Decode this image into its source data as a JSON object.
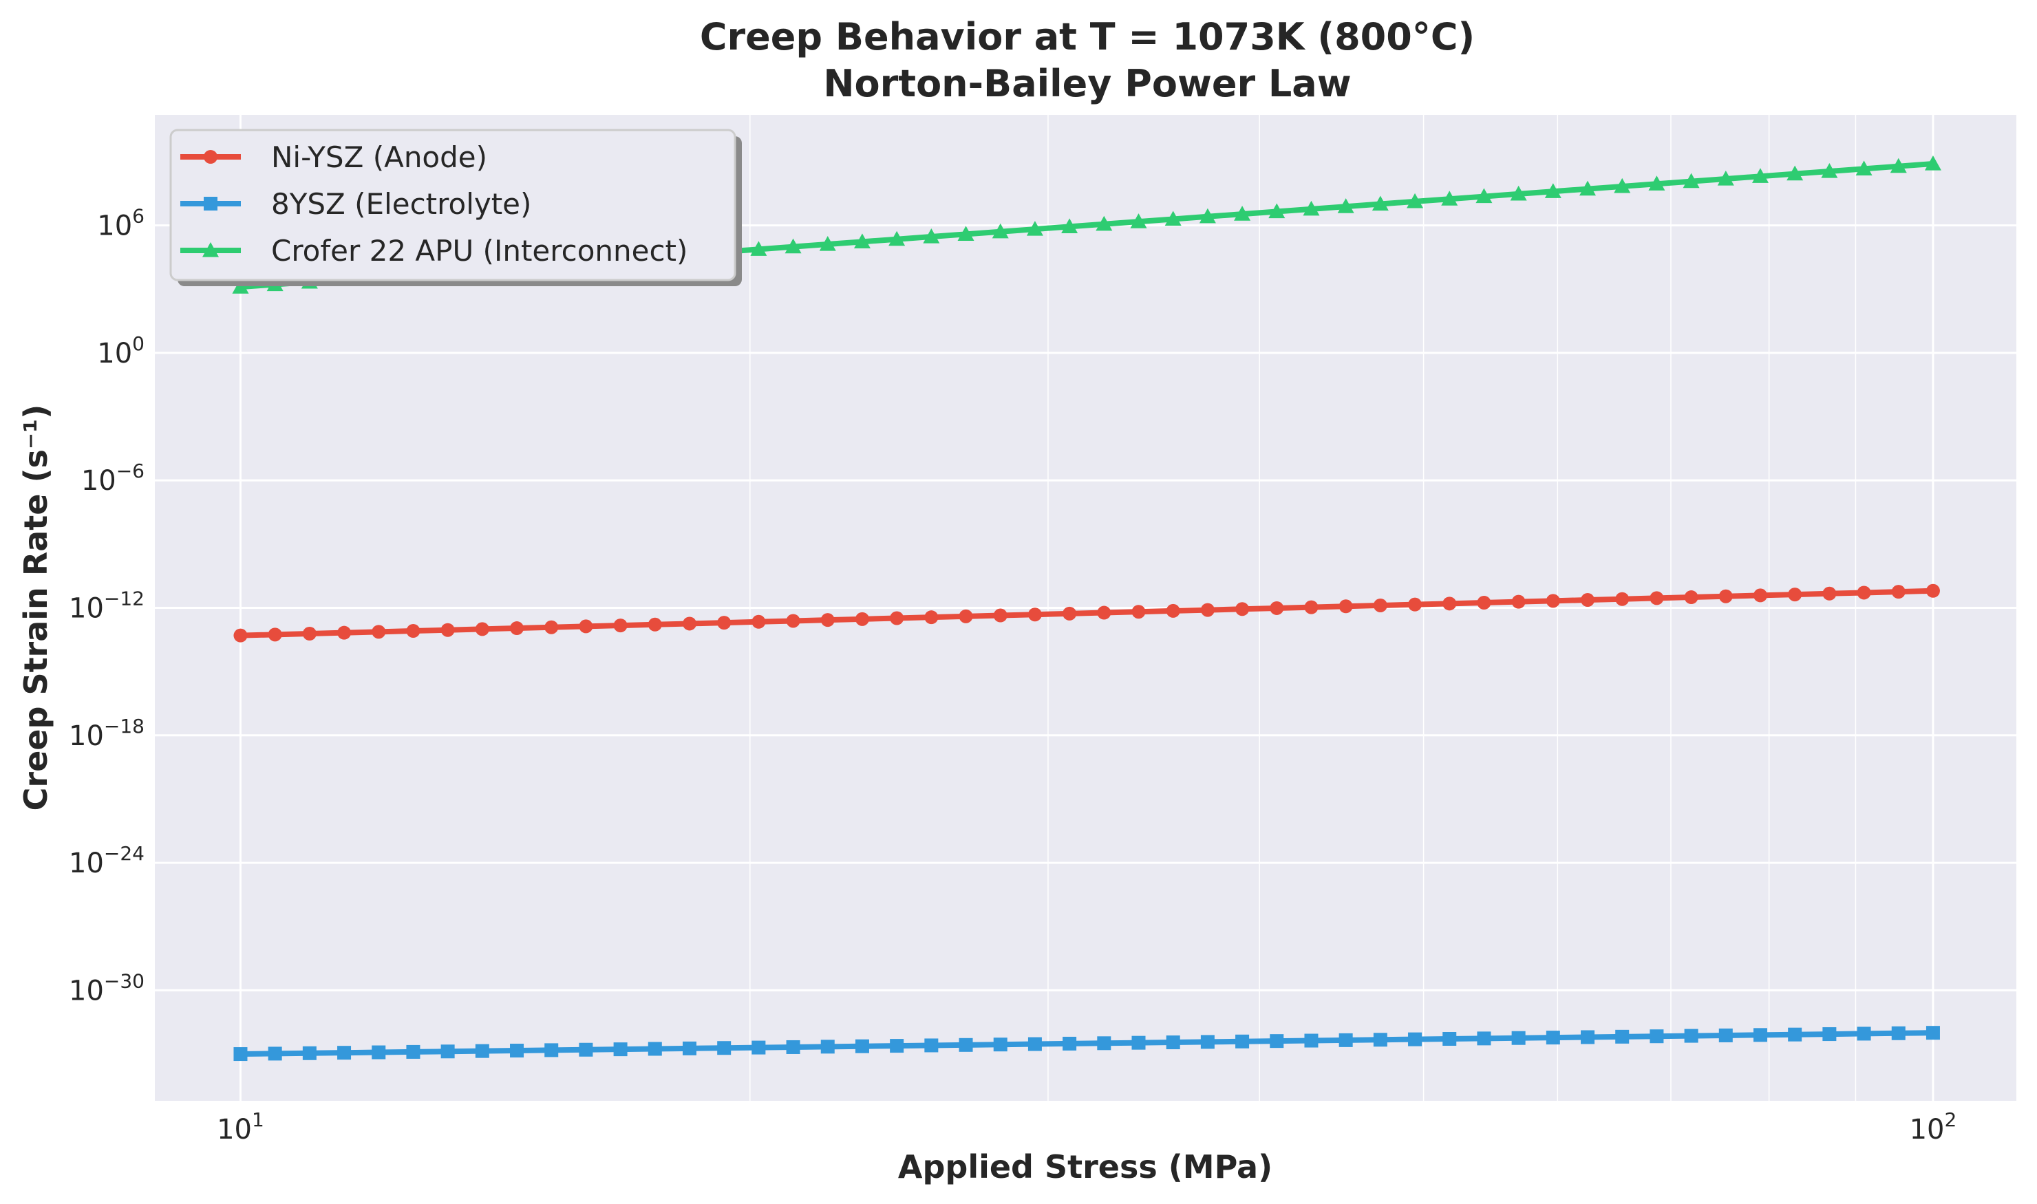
{
  "chart_data": {
    "type": "line",
    "title": "Creep Behavior at T = 1073K (800°C)",
    "subtitle": "Norton-Bailey Power Law",
    "xlabel": "Applied Stress (MPa)",
    "ylabel": "Creep Strain Rate (s⁻¹)",
    "xscale": "log",
    "yscale": "log",
    "xlim": [
      8.9,
      112
    ],
    "ylim_exponent": [
      -35.2,
      11.2
    ],
    "x_ticks": [
      {
        "base": "10",
        "exp": "1",
        "value": 10
      },
      {
        "base": "10",
        "exp": "2",
        "value": 100
      }
    ],
    "y_ticks": [
      {
        "base": "10",
        "exp": "6",
        "value": 6
      },
      {
        "base": "10",
        "exp": "0",
        "value": 0
      },
      {
        "base": "10",
        "exp": "−6",
        "value": -6
      },
      {
        "base": "10",
        "exp": "−12",
        "value": -12
      },
      {
        "base": "10",
        "exp": "−18",
        "value": -18
      },
      {
        "base": "10",
        "exp": "−24",
        "value": -24
      },
      {
        "base": "10",
        "exp": "−30",
        "value": -30
      }
    ],
    "x_minor_ticks": [
      20,
      30,
      40,
      50,
      60,
      70,
      80,
      90
    ],
    "grid": true,
    "legend_position": "top-left",
    "x_points": [
      10,
      100
    ],
    "n_points": 50,
    "series": [
      {
        "name": "Ni-YSZ (Anode)",
        "color": "#e74c3c",
        "marker": "circle",
        "log10_y_at_xmin": -13.3,
        "log10_y_at_xmax": -11.2
      },
      {
        "name": "8YSZ (Electrolyte)",
        "color": "#3498db",
        "marker": "square",
        "log10_y_at_xmin": -33.0,
        "log10_y_at_xmax": -32.0
      },
      {
        "name": "Crofer 22 APU (Interconnect)",
        "color": "#2ecc71",
        "marker": "triangle",
        "log10_y_at_xmin": 3.1,
        "log10_y_at_xmax": 8.9
      }
    ]
  }
}
